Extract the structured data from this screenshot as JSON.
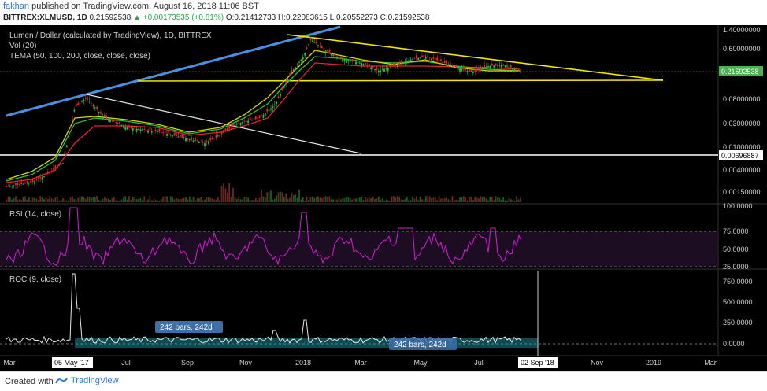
{
  "header": {
    "author": "fakhan",
    "published_text": "published on TradingView.com, August 16, 2018 11:06 BST",
    "symbol": "BITTREX:XLMUSD, 1D",
    "last": "0.21592538",
    "change": "▲ +0.00173535 (+0.81%)",
    "ohlc": "O:0.21412733 H:0.22083615 L:0.20552273 C:0.21592538"
  },
  "main_pane": {
    "title": "Lumen / Dollar (calculated by TradingView), 1D, BITTREX",
    "vol_label": "Vol (20)",
    "tema_label": "TEMA (50, 100, 200, close, close, close)",
    "price_ticks": [
      "1.40000000",
      "0.60000000",
      "0.20000000",
      "0.08000000",
      "0.03000000",
      "0.01000000",
      "0.00400000",
      "0.00150000"
    ],
    "current_price_tag": "0.21592538",
    "support_tag": "0.00696887",
    "colors": {
      "trend_blue": "#4a90e2",
      "triangle_yellow": "#f2e600",
      "tema_red": "#e0282e",
      "tema_green": "#2fbf3a",
      "tema_yellow": "#d8d800",
      "price_tag_green": "#4caf50"
    }
  },
  "rsi_pane": {
    "label": "RSI (14, close)",
    "ticks": [
      "100.0000",
      "75.0000",
      "50.0000",
      "25.0000"
    ],
    "color": "#d81bd8"
  },
  "roc_pane": {
    "label": "ROC (9, close)",
    "ticks": [
      "750.0000",
      "500.0000",
      "250.0000",
      "0.0000"
    ],
    "measure_1": "242 bars, 242d",
    "measure_2": "242 bars, 242d"
  },
  "time_axis": {
    "labels": [
      "Mar",
      "Jul",
      "Sep",
      "Nov",
      "2018",
      "Mar",
      "May",
      "Jul",
      "Nov",
      "2019",
      "Mar"
    ],
    "marker_left": "05 May '17",
    "marker_right": "02 Sep '18"
  },
  "footer": {
    "created_with": "Created with",
    "brand": "TradingView"
  }
}
